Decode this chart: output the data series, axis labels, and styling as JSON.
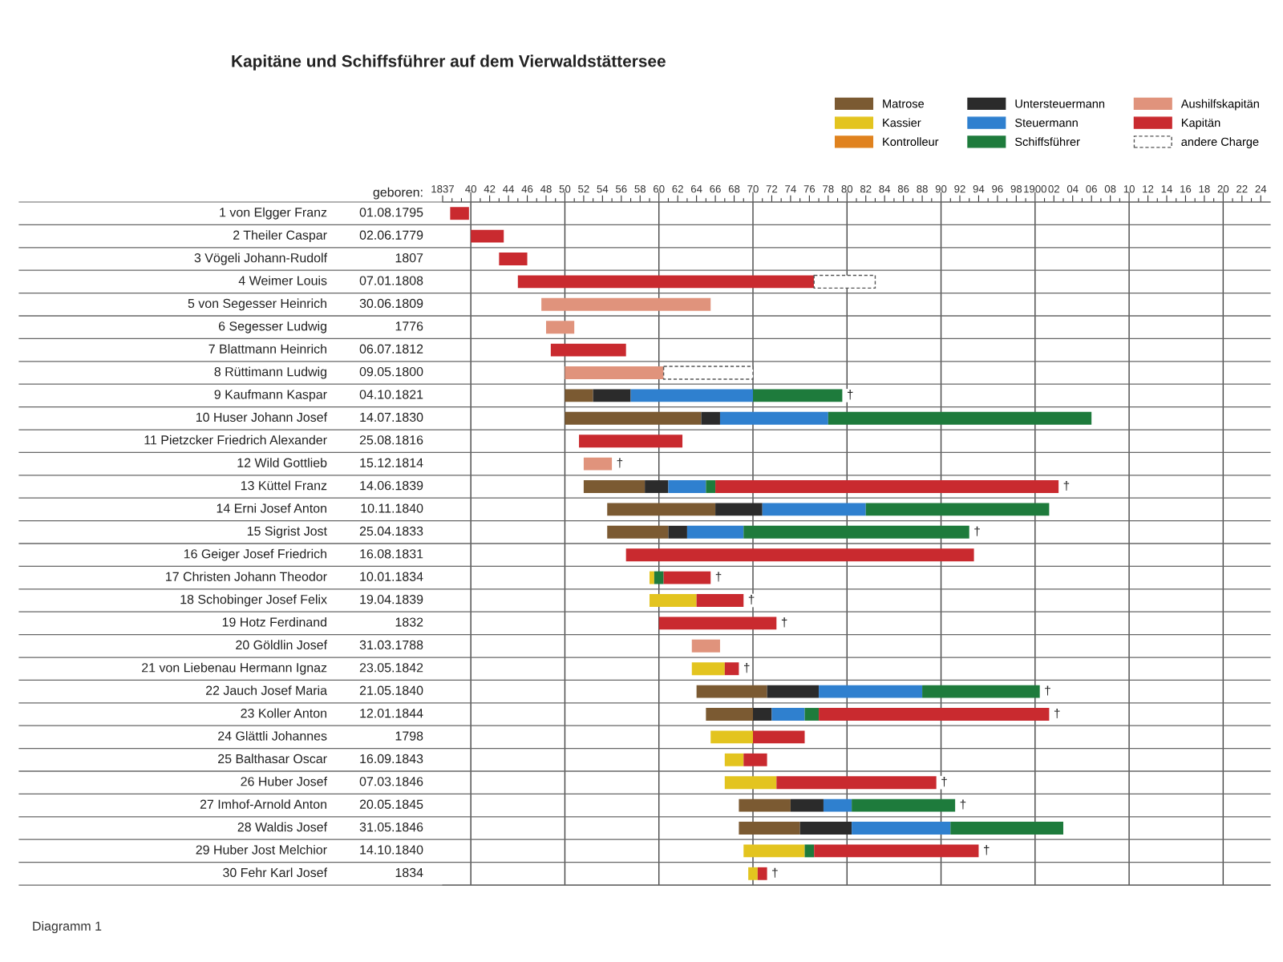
{
  "chart_data": {
    "type": "bar",
    "orientation": "horizontal",
    "title": "Kapitäne und Schiffsführer auf dem Vierwaldstättersee",
    "y2label": "geboren:",
    "categories": [
      "1 von Elgger Franz",
      "2 Theiler Caspar",
      "3 Vögeli Johann-Rudolf",
      "4 Weimer Louis",
      "5 von Segesser Heinrich",
      "6 Segesser Ludwig",
      "7 Blattmann Heinrich",
      "8 Rüttimann Ludwig",
      "9 Kaufmann Kaspar",
      "10 Huser Johann Josef",
      "11 Pietzcker Friedrich Alexander",
      "12 Wild Gottlieb",
      "13 Küttel Franz",
      "14 Erni Josef Anton",
      "15 Sigrist Jost",
      "16 Geiger Josef Friedrich",
      "17 Christen Johann Theodor",
      "18 Schobinger Josef Felix",
      "19 Hotz Ferdinand",
      "20 Göldlin Josef",
      "21 von Liebenau Hermann Ignaz",
      "22 Jauch Josef Maria",
      "23 Koller Anton",
      "24 Glättli Johannes",
      "25 Balthasar Oscar",
      "26 Huber Josef",
      "27 Imhof-Arnold Anton",
      "28 Waldis Josef",
      "29 Huber Jost Melchior",
      "30 Fehr Karl Josef"
    ],
    "y2_categories": [
      "01.08.1795",
      "02.06.1779",
      "1807",
      "07.01.1808",
      "30.06.1809",
      "1776",
      "06.07.1812",
      "09.05.1800",
      "04.10.1821",
      "14.07.1830",
      "25.08.1816",
      "15.12.1814",
      "14.06.1839",
      "10.11.1840",
      "25.04.1833",
      "16.08.1831",
      "10.01.1834",
      "19.04.1839",
      "1832",
      "31.03.1788",
      "23.05.1842",
      "21.05.1840",
      "12.01.1844",
      "1798",
      "16.09.1843",
      "07.03.1846",
      "20.05.1845",
      "31.05.1846",
      "14.10.1840",
      "1834"
    ],
    "series": [
      {
        "name": "Matrose",
        "color": "#7b5a32",
        "base": [
          null,
          null,
          null,
          null,
          null,
          null,
          null,
          null,
          1850,
          1850,
          null,
          null,
          1852,
          1854.5,
          1854.5,
          null,
          null,
          null,
          null,
          null,
          null,
          1864,
          1865,
          null,
          null,
          null,
          1868.5,
          1868.5,
          null,
          null
        ],
        "values": [
          null,
          null,
          null,
          null,
          null,
          null,
          null,
          null,
          3,
          14.5,
          null,
          null,
          6.5,
          11.5,
          6.5,
          null,
          null,
          null,
          null,
          null,
          null,
          7.5,
          5,
          null,
          null,
          null,
          5.5,
          6.5,
          null,
          null
        ]
      },
      {
        "name": "Kassier",
        "color": "#e3c41f",
        "base": [
          null,
          null,
          null,
          null,
          null,
          null,
          null,
          null,
          null,
          null,
          null,
          null,
          null,
          null,
          null,
          null,
          1859,
          1859,
          null,
          null,
          1863.5,
          null,
          null,
          1865.5,
          1867,
          1867,
          null,
          null,
          1869,
          1869.5
        ],
        "values": [
          null,
          null,
          null,
          null,
          null,
          null,
          null,
          null,
          null,
          null,
          null,
          null,
          null,
          null,
          null,
          null,
          0.5,
          5,
          null,
          null,
          3.5,
          null,
          null,
          4.5,
          2,
          5.5,
          null,
          null,
          6.5,
          1
        ]
      },
      {
        "name": "Kontrolleur",
        "color": "#e0821e",
        "base": [
          null,
          null,
          null,
          null,
          null,
          null,
          null,
          null,
          null,
          null,
          null,
          null,
          null,
          null,
          null,
          null,
          null,
          null,
          null,
          null,
          null,
          null,
          null,
          null,
          null,
          null,
          null,
          null,
          null,
          null
        ],
        "values": [
          null,
          null,
          null,
          null,
          null,
          null,
          null,
          null,
          null,
          null,
          null,
          null,
          null,
          null,
          null,
          null,
          null,
          null,
          null,
          null,
          null,
          null,
          null,
          null,
          null,
          null,
          null,
          null,
          null,
          null
        ]
      },
      {
        "name": "Untersteuermann",
        "color": "#2b2b2b",
        "base": [
          null,
          null,
          null,
          null,
          null,
          null,
          null,
          null,
          1853,
          1864.5,
          null,
          null,
          1858.5,
          1866,
          1861,
          null,
          null,
          null,
          null,
          null,
          null,
          1871.5,
          1870,
          null,
          null,
          null,
          1874,
          1875,
          null,
          null
        ],
        "values": [
          null,
          null,
          null,
          null,
          null,
          null,
          null,
          null,
          4,
          2,
          null,
          null,
          2.5,
          5,
          2,
          null,
          null,
          null,
          null,
          null,
          null,
          5.5,
          2,
          null,
          null,
          null,
          3.5,
          5.5,
          null,
          null
        ]
      },
      {
        "name": "Steuermann",
        "color": "#2f80cf",
        "base": [
          null,
          null,
          null,
          null,
          null,
          null,
          null,
          null,
          1857,
          1866.5,
          null,
          null,
          1861,
          1871,
          1863,
          null,
          null,
          null,
          null,
          null,
          null,
          1877,
          1872,
          null,
          null,
          null,
          1877.5,
          1880.5,
          null,
          null
        ],
        "values": [
          null,
          null,
          null,
          null,
          null,
          null,
          null,
          null,
          13,
          11.5,
          null,
          null,
          4,
          11,
          6,
          null,
          null,
          null,
          null,
          null,
          null,
          11,
          3.5,
          null,
          null,
          null,
          3,
          10.5,
          null,
          null
        ]
      },
      {
        "name": "Schiffsführer",
        "color": "#1e7b3c",
        "base": [
          null,
          null,
          null,
          null,
          null,
          null,
          null,
          null,
          1870,
          1878,
          null,
          null,
          1865,
          1882,
          1869,
          null,
          1859.5,
          null,
          null,
          null,
          null,
          1888,
          1875.5,
          null,
          null,
          null,
          1880.5,
          1891,
          1875.5,
          null
        ],
        "values": [
          null,
          null,
          null,
          null,
          null,
          null,
          null,
          null,
          9.5,
          28,
          null,
          null,
          1,
          19.5,
          24,
          null,
          1,
          null,
          null,
          null,
          null,
          12.5,
          1.5,
          null,
          null,
          null,
          11,
          12,
          1,
          null
        ]
      },
      {
        "name": "Aushilfskapitän",
        "color": "#e0937c",
        "base": [
          null,
          null,
          null,
          null,
          1847.5,
          1848,
          null,
          1850,
          null,
          null,
          null,
          1852,
          null,
          null,
          null,
          null,
          null,
          null,
          null,
          1863.5,
          null,
          null,
          null,
          null,
          null,
          null,
          null,
          null,
          null,
          null
        ],
        "values": [
          null,
          null,
          null,
          null,
          18,
          3,
          null,
          10.5,
          null,
          null,
          null,
          3,
          null,
          null,
          null,
          null,
          null,
          null,
          null,
          3,
          null,
          null,
          null,
          null,
          null,
          null,
          null,
          null,
          null,
          null
        ]
      },
      {
        "name": "Kapitän",
        "color": "#c92a2f",
        "base": [
          1837.8,
          1840,
          1843,
          1845,
          null,
          null,
          1848.5,
          null,
          null,
          null,
          1851.5,
          null,
          1866,
          null,
          null,
          1856.5,
          1860.5,
          1864,
          1860,
          null,
          1867,
          null,
          1877,
          1870,
          1869,
          1872.5,
          null,
          null,
          1876.5,
          1870.5
        ],
        "values": [
          2,
          3.5,
          3,
          31.5,
          null,
          null,
          8,
          null,
          null,
          null,
          11,
          null,
          36.5,
          null,
          null,
          37,
          5,
          5,
          12.5,
          null,
          1.5,
          null,
          24.5,
          5.5,
          2.5,
          17,
          null,
          null,
          17.5,
          1
        ]
      },
      {
        "name": "andere Charge",
        "color": "#ffffff",
        "line_style": "dashed",
        "base": [
          null,
          null,
          null,
          1876.5,
          null,
          null,
          null,
          1860.5,
          null,
          null,
          null,
          null,
          null,
          null,
          null,
          null,
          null,
          null,
          null,
          null,
          null,
          null,
          null,
          null,
          null,
          null,
          null,
          null,
          null,
          null
        ],
        "values": [
          null,
          null,
          null,
          6.5,
          null,
          null,
          null,
          9.5,
          null,
          null,
          null,
          null,
          null,
          null,
          null,
          null,
          null,
          null,
          null,
          null,
          null,
          null,
          null,
          null,
          null,
          null,
          null,
          null,
          null,
          null
        ]
      }
    ],
    "xlim": [
      1837,
      1925
    ],
    "xticks": [
      1837,
      {
        "value": 1838,
        "label": null
      },
      {
        "value": 1839,
        "label": null
      },
      {
        "value": 1840,
        "label": "40"
      },
      {
        "value": 1841,
        "label": null
      },
      {
        "value": 1842,
        "label": "42"
      },
      {
        "value": 1843,
        "label": null
      },
      {
        "value": 1844,
        "label": "44"
      },
      {
        "value": 1845,
        "label": null
      },
      {
        "value": 1846,
        "label": "46"
      },
      {
        "value": 1847,
        "label": null
      },
      {
        "value": 1848,
        "label": "48"
      },
      {
        "value": 1849,
        "label": null
      },
      {
        "value": 1850,
        "label": "50"
      },
      {
        "value": 1851,
        "label": null
      },
      {
        "value": 1852,
        "label": "52"
      },
      {
        "value": 1853,
        "label": null
      },
      {
        "value": 1854,
        "label": "54"
      },
      {
        "value": 1855,
        "label": null
      },
      {
        "value": 1856,
        "label": "56"
      },
      {
        "value": 1857,
        "label": null
      },
      {
        "value": 1858,
        "label": "58"
      },
      {
        "value": 1859,
        "label": null
      },
      {
        "value": 1860,
        "label": "60"
      },
      {
        "value": 1861,
        "label": null
      },
      {
        "value": 1862,
        "label": "62"
      },
      {
        "value": 1863,
        "label": null
      },
      {
        "value": 1864,
        "label": "64"
      },
      {
        "value": 1865,
        "label": null
      },
      {
        "value": 1866,
        "label": "66"
      },
      {
        "value": 1867,
        "label": null
      },
      {
        "value": 1868,
        "label": "68"
      },
      {
        "value": 1869,
        "label": null
      },
      {
        "value": 1870,
        "label": "70"
      },
      {
        "value": 1871,
        "label": null
      },
      {
        "value": 1872,
        "label": "72"
      },
      {
        "value": 1873,
        "label": null
      },
      {
        "value": 1874,
        "label": "74"
      },
      {
        "value": 1875,
        "label": null
      },
      {
        "value": 1876,
        "label": "76"
      },
      {
        "value": 1877,
        "label": null
      },
      {
        "value": 1878,
        "label": "78"
      },
      {
        "value": 1879,
        "label": null
      },
      {
        "value": 1880,
        "label": "80"
      },
      {
        "value": 1881,
        "label": null
      },
      {
        "value": 1882,
        "label": "82"
      },
      {
        "value": 1883,
        "label": null
      },
      {
        "value": 1884,
        "label": "84"
      },
      {
        "value": 1885,
        "label": null
      },
      {
        "value": 1886,
        "label": "86"
      },
      {
        "value": 1887,
        "label": null
      },
      {
        "value": 1888,
        "label": "88"
      },
      {
        "value": 1889,
        "label": null
      },
      {
        "value": 1890,
        "label": "90"
      },
      {
        "value": 1891,
        "label": null
      },
      {
        "value": 1892,
        "label": "92"
      },
      {
        "value": 1893,
        "label": null
      },
      {
        "value": 1894,
        "label": "94"
      },
      {
        "value": 1895,
        "label": null
      },
      {
        "value": 1896,
        "label": "96"
      },
      {
        "value": 1897,
        "label": null
      },
      {
        "value": 1898,
        "label": "98"
      },
      {
        "value": 1899,
        "label": null
      },
      1900,
      {
        "value": 1901,
        "label": null
      },
      {
        "value": 1902,
        "label": "02"
      },
      {
        "value": 1903,
        "label": null
      },
      {
        "value": 1904,
        "label": "04"
      },
      {
        "value": 1905,
        "label": null
      },
      {
        "value": 1906,
        "label": "06"
      },
      {
        "value": 1907,
        "label": null
      },
      {
        "value": 1908,
        "label": "08"
      },
      {
        "value": 1909,
        "label": null
      },
      {
        "value": 1910,
        "label": "10"
      },
      {
        "value": 1911,
        "label": null
      },
      {
        "value": 1912,
        "label": "12"
      },
      {
        "value": 1913,
        "label": null
      },
      {
        "value": 1914,
        "label": "14"
      },
      {
        "value": 1915,
        "label": null
      },
      {
        "value": 1916,
        "label": "16"
      },
      {
        "value": 1917,
        "label": null
      },
      {
        "value": 1918,
        "label": "18"
      },
      {
        "value": 1919,
        "label": null
      },
      {
        "value": 1920,
        "label": "20"
      },
      {
        "value": 1921,
        "label": null
      },
      {
        "value": 1922,
        "label": "22"
      },
      {
        "value": 1923,
        "label": null
      },
      {
        "value": 1924,
        "label": "24"
      }
    ],
    "ref_lines": [
      {
        "axis": "x",
        "value": 1840
      },
      {
        "axis": "x",
        "value": 1850
      },
      {
        "axis": "x",
        "value": 1860
      },
      {
        "axis": "x",
        "value": 1870
      },
      {
        "axis": "x",
        "value": 1880
      },
      {
        "axis": "x",
        "value": 1890
      },
      {
        "axis": "x",
        "value": 1900
      },
      {
        "axis": "x",
        "value": 1910
      },
      {
        "axis": "x",
        "value": 1920
      }
    ],
    "grid": "y",
    "legend": "top right",
    "annotations": [
      "Diagramm 1",
      {
        "text": "†",
        "x": 1879.5,
        "y": "9 Kaufmann Kaspar"
      },
      {
        "text": "†",
        "x": 1855,
        "y": "12 Wild Gottlieb"
      },
      {
        "text": "†",
        "x": 1902.5,
        "y": "13 Küttel Franz"
      },
      {
        "text": "†",
        "x": 1893,
        "y": "15 Sigrist Jost"
      },
      {
        "text": "†",
        "x": 1865.5,
        "y": "17 Christen Johann Theodor"
      },
      {
        "text": "†",
        "x": 1869,
        "y": "18 Schobinger Josef Felix"
      },
      {
        "text": "†",
        "x": 1872.5,
        "y": "19 Hotz Ferdinand"
      },
      {
        "text": "†",
        "x": 1868.5,
        "y": "21 von Liebenau Hermann Ignaz"
      },
      {
        "text": "†",
        "x": 1900.5,
        "y": "22 Jauch Josef Maria"
      },
      {
        "text": "†",
        "x": 1901.5,
        "y": "23 Koller Anton"
      },
      {
        "text": "†",
        "x": 1889.5,
        "y": "26 Huber Josef"
      },
      {
        "text": "†",
        "x": 1891.5,
        "y": "27 Imhof-Arnold Anton"
      },
      {
        "text": "†",
        "x": 1894,
        "y": "29 Huber Jost Melchior"
      },
      {
        "text": "†",
        "x": 1871.5,
        "y": "30 Fehr Karl Josef"
      }
    ]
  }
}
